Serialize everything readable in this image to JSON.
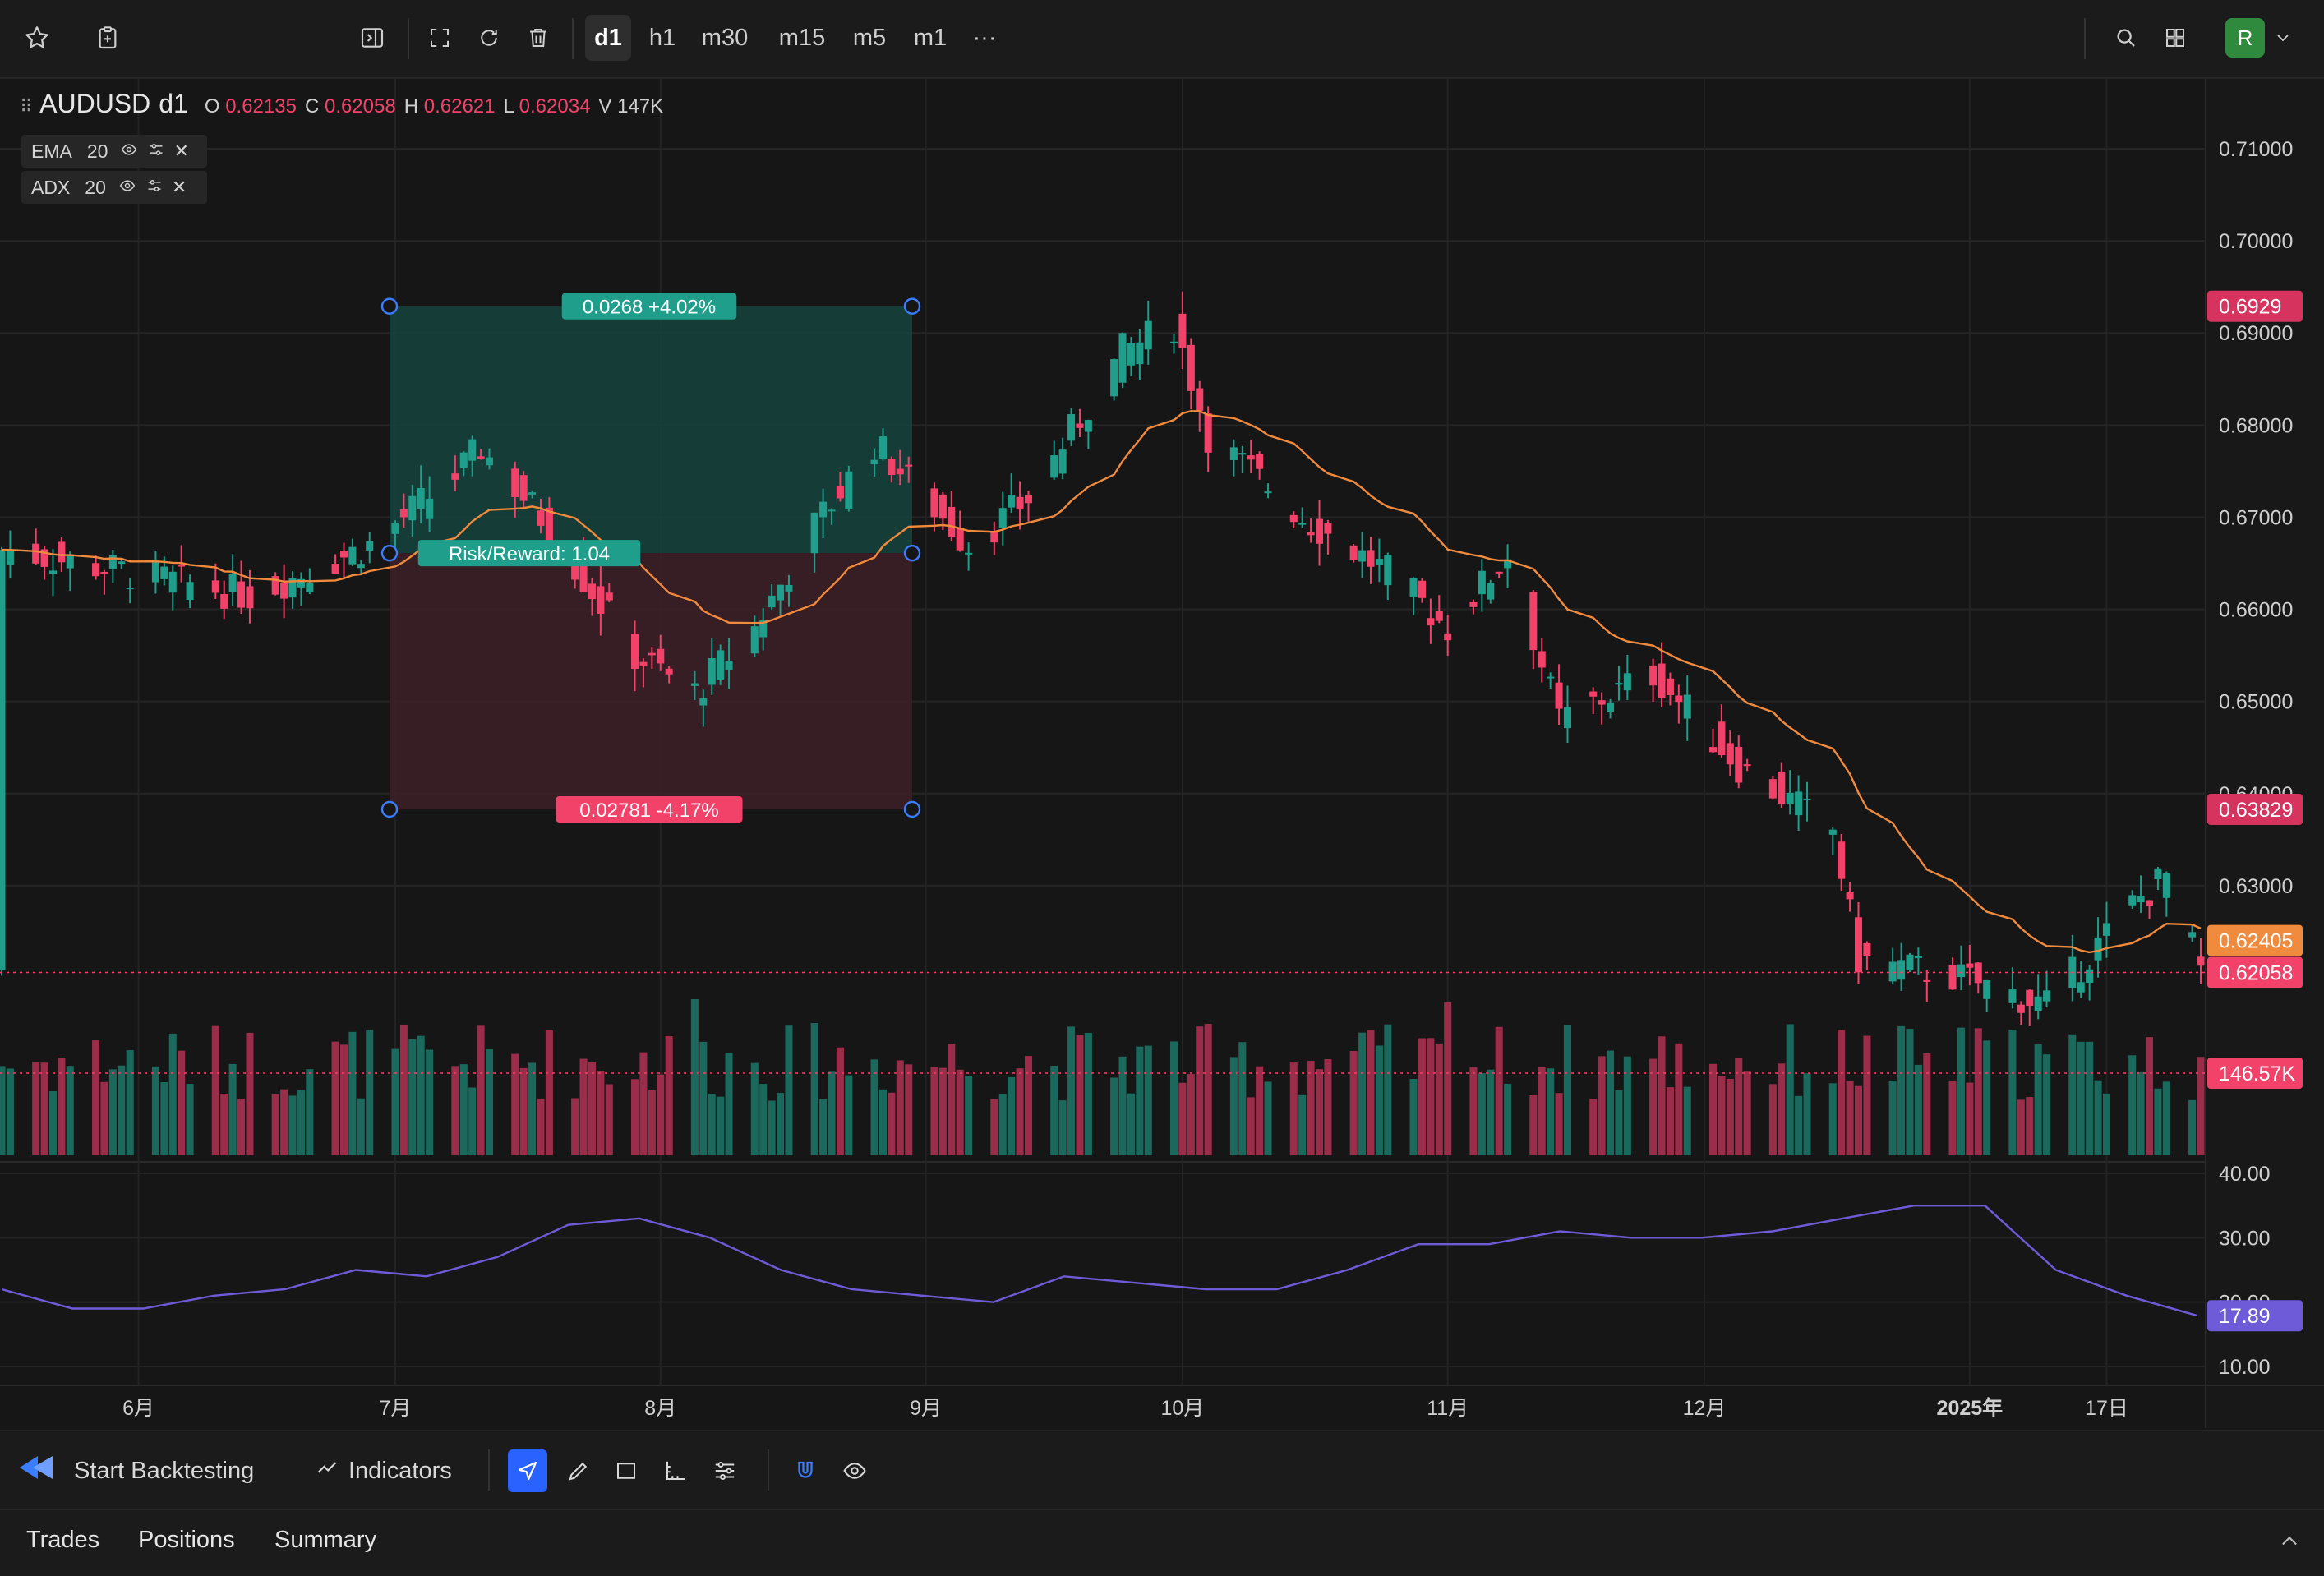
{
  "toolbar": {
    "timeframes": [
      "d1",
      "h1",
      "m30",
      "m15",
      "m5",
      "m1"
    ],
    "active_timeframe": "d1",
    "more": "···",
    "avatar": "R"
  },
  "legend": {
    "symbol": "AUDUSD",
    "timeframe": "d1",
    "o_label": "O",
    "o_value": "0.62135",
    "c_label": "C",
    "c_value": "0.62058",
    "h_label": "H",
    "h_value": "0.62621",
    "l_label": "L",
    "l_value": "0.62034",
    "v_label": "V",
    "v_value": "147K"
  },
  "indicators": [
    {
      "name": "EMA",
      "period": "20"
    },
    {
      "name": "ADX",
      "period": "20"
    }
  ],
  "risk_reward": {
    "profit_label": "0.0268 +4.02%",
    "ratio_label": "Risk/Reward: 1.04",
    "loss_label": "0.02781 -4.17%",
    "target_price": 0.6929,
    "entry_price": 0.6661,
    "stop_price": 0.63829
  },
  "price_axis": {
    "ticks": [
      "0.71000",
      "0.70000",
      "0.69000",
      "0.68000",
      "0.67000",
      "0.66000",
      "0.65000",
      "0.64000",
      "0.63000"
    ],
    "badges": {
      "target": "0.6929",
      "stop": "0.63829",
      "ema": "0.62405",
      "last": "0.62058",
      "volume": "146.57K"
    }
  },
  "adx_axis": {
    "ticks": [
      "40.00",
      "30.00",
      "20.00",
      "10.00"
    ],
    "current": "17.89"
  },
  "time_axis": [
    "6月",
    "7月",
    "8月",
    "9月",
    "10月",
    "11月",
    "12月",
    "2025年",
    "17日"
  ],
  "colors": {
    "up": "#1f9e8b",
    "down": "#f2426a",
    "ema": "#f08a3c",
    "adx": "#6e5bd8",
    "profit_zone": "#16433e",
    "loss_zone": "#3d1e27",
    "avatar": "#2f8a3e",
    "handles": "#3b7dff"
  },
  "bottom_toolbar": {
    "backtest_label": "Start Backtesting",
    "indicators_label": "Indicators"
  },
  "tabs": [
    "Trades",
    "Positions",
    "Summary"
  ],
  "chart_data": {
    "type": "candlestick",
    "symbol": "AUDUSD",
    "interval": "d1",
    "ylim": [
      0.615,
      0.715
    ],
    "close_path": [
      {
        "date": "2024-05-16",
        "close": 0.6665
      },
      {
        "date": "2024-05-31",
        "close": 0.664
      },
      {
        "date": "2024-06-14",
        "close": 0.6615
      },
      {
        "date": "2024-06-28",
        "close": 0.667
      },
      {
        "date": "2024-07-08",
        "close": 0.6745
      },
      {
        "date": "2024-07-11",
        "close": 0.6775
      },
      {
        "date": "2024-07-19",
        "close": 0.669
      },
      {
        "date": "2024-07-29",
        "close": 0.655
      },
      {
        "date": "2024-08-05",
        "close": 0.651
      },
      {
        "date": "2024-08-12",
        "close": 0.658
      },
      {
        "date": "2024-08-19",
        "close": 0.669
      },
      {
        "date": "2024-08-26",
        "close": 0.678
      },
      {
        "date": "2024-09-06",
        "close": 0.667
      },
      {
        "date": "2024-09-13",
        "close": 0.672
      },
      {
        "date": "2024-09-24",
        "close": 0.688
      },
      {
        "date": "2024-09-30",
        "close": 0.691
      },
      {
        "date": "2024-10-04",
        "close": 0.679
      },
      {
        "date": "2024-10-15",
        "close": 0.67
      },
      {
        "date": "2024-10-25",
        "close": 0.664
      },
      {
        "date": "2024-11-01",
        "close": 0.658
      },
      {
        "date": "2024-11-08",
        "close": 0.666
      },
      {
        "date": "2024-11-14",
        "close": 0.648
      },
      {
        "date": "2024-11-25",
        "close": 0.653
      },
      {
        "date": "2024-12-05",
        "close": 0.643
      },
      {
        "date": "2024-12-16",
        "close": 0.636
      },
      {
        "date": "2024-12-19",
        "close": 0.622
      },
      {
        "date": "2024-12-31",
        "close": 0.62
      },
      {
        "date": "2025-01-10",
        "close": 0.617
      },
      {
        "date": "2025-01-20",
        "close": 0.628
      },
      {
        "date": "2025-01-24",
        "close": 0.631
      },
      {
        "date": "2025-01-28",
        "close": 0.6206
      }
    ],
    "ema_period": 20,
    "ema_last": 0.62405,
    "volume_last": "146.57K",
    "adx": {
      "period": 20,
      "ylim": [
        5,
        45
      ],
      "path": [
        22,
        19,
        19,
        21,
        22,
        25,
        24,
        27,
        32,
        33,
        30,
        25,
        22,
        21,
        20,
        24,
        23,
        22,
        22,
        25,
        29,
        29,
        31,
        30,
        30,
        31,
        33,
        35,
        35,
        25,
        21,
        17.89
      ]
    }
  }
}
